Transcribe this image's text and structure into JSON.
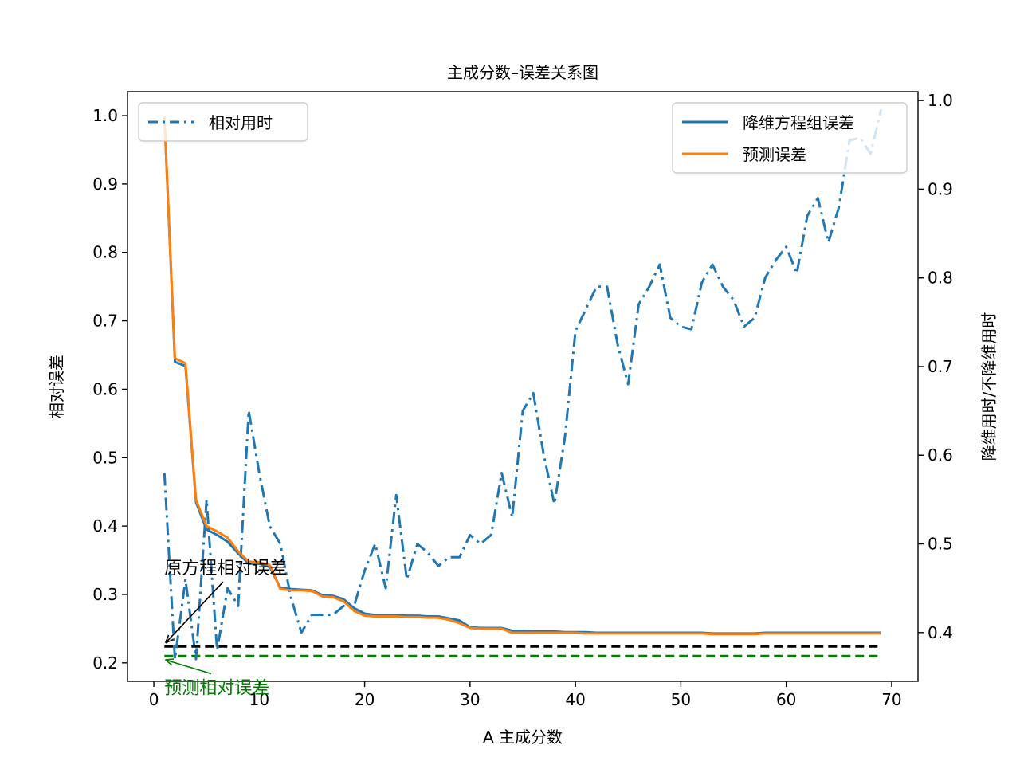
{
  "chart_data": {
    "type": "line",
    "title": "主成分数–误差关系图",
    "xlabel": "A 主成分数",
    "ylabel": "相对误差",
    "ylabel_right": "降维用时/不降维用时",
    "xlim": [
      -2.5,
      72.5
    ],
    "ylim": [
      0.173,
      1.035
    ],
    "ylim_right": [
      0.345,
      1.01
    ],
    "x_ticks": [
      0,
      10,
      20,
      30,
      40,
      50,
      60,
      70
    ],
    "y_ticks": [
      0.2,
      0.3,
      0.4,
      0.5,
      0.6,
      0.7,
      0.8,
      0.9,
      1.0
    ],
    "y_ticks_right": [
      0.4,
      0.5,
      0.6,
      0.7,
      0.8,
      0.9,
      1.0
    ],
    "grid": false,
    "series": [
      {
        "name": "降维方程组误差",
        "axis": "left",
        "color": "#1f77b4",
        "style": "solid",
        "x": [
          1,
          2,
          3,
          4,
          5,
          6,
          7,
          8,
          9,
          10,
          11,
          12,
          13,
          14,
          15,
          16,
          17,
          18,
          19,
          20,
          21,
          22,
          23,
          24,
          25,
          26,
          27,
          28,
          29,
          30,
          31,
          32,
          33,
          34,
          35,
          36,
          37,
          38,
          39,
          40,
          41,
          42,
          43,
          44,
          45,
          46,
          47,
          48,
          49,
          50,
          51,
          52,
          53,
          54,
          55,
          56,
          57,
          58,
          59,
          60,
          61,
          62,
          63,
          64,
          65,
          66,
          67,
          68,
          69
        ],
        "values": [
          1.0,
          0.64,
          0.634,
          0.435,
          0.395,
          0.387,
          0.377,
          0.36,
          0.345,
          0.345,
          0.34,
          0.31,
          0.308,
          0.307,
          0.306,
          0.299,
          0.298,
          0.293,
          0.28,
          0.272,
          0.27,
          0.27,
          0.27,
          0.269,
          0.269,
          0.268,
          0.268,
          0.265,
          0.262,
          0.252,
          0.251,
          0.251,
          0.251,
          0.247,
          0.247,
          0.246,
          0.246,
          0.246,
          0.245,
          0.245,
          0.245,
          0.244,
          0.244,
          0.244,
          0.244,
          0.244,
          0.244,
          0.244,
          0.244,
          0.244,
          0.244,
          0.244,
          0.243,
          0.243,
          0.243,
          0.243,
          0.243,
          0.244,
          0.244,
          0.244,
          0.244,
          0.244,
          0.244,
          0.244,
          0.244,
          0.244,
          0.244,
          0.244,
          0.244
        ]
      },
      {
        "name": "预测误差",
        "axis": "left",
        "color": "#ff7f0e",
        "style": "solid",
        "x": [
          1,
          2,
          3,
          4,
          5,
          6,
          7,
          8,
          9,
          10,
          11,
          12,
          13,
          14,
          15,
          16,
          17,
          18,
          19,
          20,
          21,
          22,
          23,
          24,
          25,
          26,
          27,
          28,
          29,
          30,
          31,
          32,
          33,
          34,
          35,
          36,
          37,
          38,
          39,
          40,
          41,
          42,
          43,
          44,
          45,
          46,
          47,
          48,
          49,
          50,
          51,
          52,
          53,
          54,
          55,
          56,
          57,
          58,
          59,
          60,
          61,
          62,
          63,
          64,
          65,
          66,
          67,
          68,
          69
        ],
        "values": [
          1.0,
          0.645,
          0.638,
          0.438,
          0.4,
          0.392,
          0.383,
          0.363,
          0.348,
          0.347,
          0.343,
          0.308,
          0.306,
          0.306,
          0.305,
          0.297,
          0.296,
          0.29,
          0.276,
          0.269,
          0.268,
          0.268,
          0.268,
          0.267,
          0.267,
          0.266,
          0.266,
          0.263,
          0.258,
          0.251,
          0.25,
          0.25,
          0.25,
          0.244,
          0.244,
          0.244,
          0.244,
          0.244,
          0.244,
          0.244,
          0.243,
          0.243,
          0.243,
          0.243,
          0.243,
          0.243,
          0.243,
          0.243,
          0.243,
          0.243,
          0.243,
          0.243,
          0.242,
          0.242,
          0.242,
          0.242,
          0.242,
          0.243,
          0.243,
          0.243,
          0.243,
          0.243,
          0.243,
          0.243,
          0.243,
          0.243,
          0.243,
          0.243,
          0.243
        ]
      },
      {
        "name": "相对用时",
        "axis": "right",
        "color": "#1f77b4",
        "style": "dashdot",
        "x": [
          1,
          2,
          3,
          4,
          5,
          6,
          7,
          8,
          9,
          10,
          11,
          12,
          13,
          14,
          15,
          16,
          17,
          18,
          19,
          20,
          21,
          22,
          23,
          24,
          25,
          26,
          27,
          28,
          29,
          30,
          31,
          32,
          33,
          34,
          35,
          36,
          37,
          38,
          39,
          40,
          41,
          42,
          43,
          44,
          45,
          46,
          47,
          48,
          49,
          50,
          51,
          52,
          53,
          54,
          55,
          56,
          57,
          58,
          59,
          60,
          61,
          62,
          63,
          64,
          65,
          66,
          67,
          68,
          69
        ],
        "values": [
          0.58,
          0.37,
          0.46,
          0.37,
          0.55,
          0.38,
          0.45,
          0.43,
          0.65,
          0.58,
          0.52,
          0.5,
          0.44,
          0.4,
          0.42,
          0.42,
          0.42,
          0.43,
          0.43,
          0.47,
          0.5,
          0.45,
          0.555,
          0.46,
          0.5,
          0.49,
          0.475,
          0.485,
          0.485,
          0.51,
          0.5,
          0.51,
          0.58,
          0.53,
          0.65,
          0.67,
          0.6,
          0.545,
          0.62,
          0.74,
          0.765,
          0.79,
          0.79,
          0.725,
          0.68,
          0.77,
          0.79,
          0.815,
          0.755,
          0.745,
          0.742,
          0.795,
          0.815,
          0.79,
          0.775,
          0.745,
          0.755,
          0.8,
          0.82,
          0.835,
          0.805,
          0.87,
          0.89,
          0.84,
          0.88,
          0.955,
          0.958,
          0.94,
          0.99
        ]
      }
    ],
    "reference_lines": [
      {
        "label": "原方程相对误差",
        "y": 0.224,
        "color": "#000000",
        "style": "dashed",
        "x_start": 1,
        "x_end": 69
      },
      {
        "label": "预测相对误差",
        "y": 0.21,
        "color": "#008000",
        "style": "dashed",
        "x_start": 1,
        "x_end": 69
      }
    ],
    "annotations": [
      {
        "text": "原方程相对误差",
        "color": "#000000",
        "target_x": 1,
        "target_y": 0.224,
        "text_x": 1,
        "text_y": 0.33
      },
      {
        "text": "预测相对误差",
        "color": "#008000",
        "target_x": 1,
        "target_y": 0.21,
        "text_x": 1,
        "text_y": 0.155
      }
    ],
    "legends": [
      {
        "placement": "upper-left",
        "entries": [
          "相对用时"
        ]
      },
      {
        "placement": "upper-right",
        "entries": [
          "降维方程组误差",
          "预测误差"
        ]
      }
    ]
  }
}
